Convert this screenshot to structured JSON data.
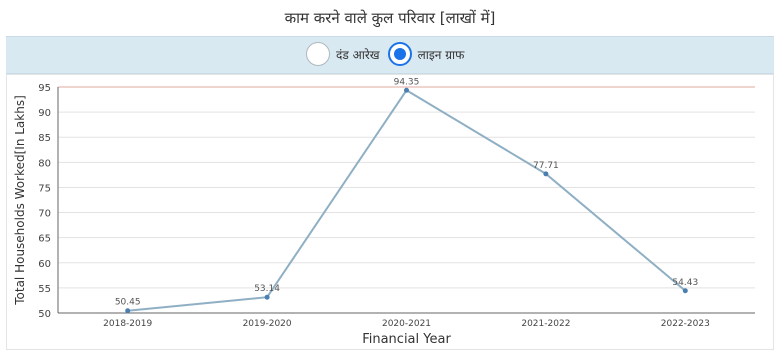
{
  "title": "काम करने वाले कुल परिवार [लाखों में]",
  "toggle": {
    "options": [
      {
        "label": "दंड आरेख",
        "selected": false
      },
      {
        "label": "लाइन ग्राफ",
        "selected": true
      }
    ]
  },
  "colors": {
    "line": "#8fafc4",
    "point": "#4a7fb0",
    "top_grid": "#e0a8a0",
    "grid": "#e3e3e3",
    "toggle_bg": "#d9e9f2",
    "accent": "#1a73e8"
  },
  "chart_data": {
    "type": "line",
    "title": "",
    "xlabel": "Financial Year",
    "ylabel": "Total Households Worked[In Lakhs]",
    "categories": [
      "2018-2019",
      "2019-2020",
      "2020-2021",
      "2021-2022",
      "2022-2023"
    ],
    "series": [
      {
        "values": [
          50.45,
          53.14,
          94.35,
          77.71,
          54.43
        ]
      }
    ],
    "data_labels": [
      "50.45",
      "53.14",
      "94.35",
      "77.71",
      "54.43"
    ],
    "ylim": [
      50,
      95
    ],
    "yticks": [
      50,
      55,
      60,
      65,
      70,
      75,
      80,
      85,
      90,
      95
    ],
    "grid": true,
    "legend": "none"
  }
}
